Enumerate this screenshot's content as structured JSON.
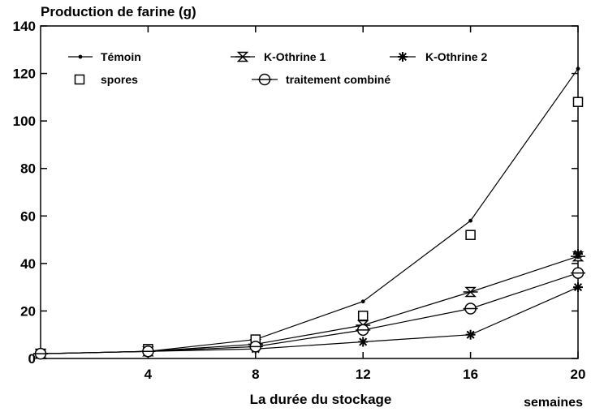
{
  "chart_data": {
    "type": "line",
    "title": "Production de farine (g)",
    "xlabel": "La durée du stockage",
    "xunit": "semaines",
    "ylabel": "",
    "xlim": [
      0,
      20
    ],
    "ylim": [
      0,
      140
    ],
    "xticks": [
      4,
      8,
      12,
      16,
      20
    ],
    "yticks": [
      0,
      20,
      40,
      60,
      80,
      100,
      120,
      140
    ],
    "grid": false,
    "legend_position": "top",
    "x": [
      0,
      4,
      8,
      12,
      16,
      20
    ],
    "series": [
      {
        "name": "Témoin",
        "marker": "dot",
        "line": true,
        "values": [
          2,
          3,
          8,
          24,
          58,
          122
        ]
      },
      {
        "name": "K-Othrine 1",
        "marker": "hourglass",
        "line": true,
        "values": [
          2,
          3,
          6,
          14,
          28,
          43
        ]
      },
      {
        "name": "K-Othrine 2",
        "marker": "star",
        "line": true,
        "values": [
          2,
          3,
          4,
          7,
          10,
          30
        ]
      },
      {
        "name": "spores",
        "marker": "square",
        "line": false,
        "values": [
          2,
          4,
          8,
          18,
          52,
          108
        ]
      },
      {
        "name": "traitement combiné",
        "marker": "circle",
        "line": true,
        "values": [
          2,
          3,
          5,
          12,
          21,
          36
        ]
      }
    ],
    "extra_points": [
      {
        "series": "K-Othrine 2",
        "x": 20,
        "y": 44
      }
    ]
  }
}
